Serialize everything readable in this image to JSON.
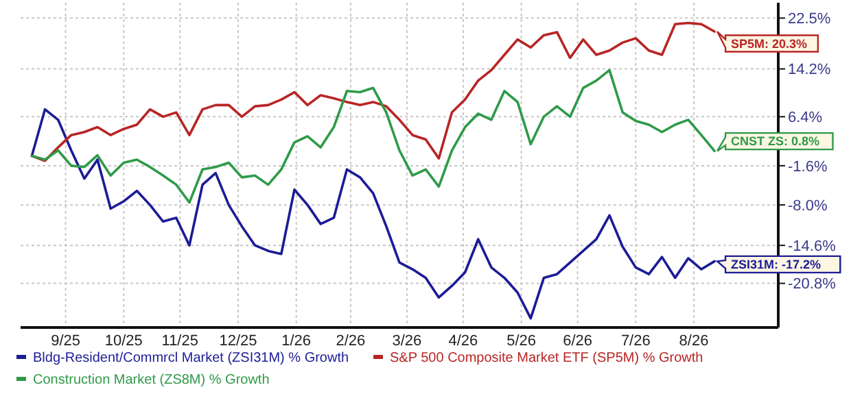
{
  "chart_data": {
    "type": "line",
    "x": [
      "2025-08-28",
      "2025-09-04",
      "2025-09-11",
      "2025-09-18",
      "2025-09-25",
      "2025-10-02",
      "2025-10-09",
      "2025-10-16",
      "2025-10-23",
      "2025-10-30",
      "2025-11-06",
      "2025-11-13",
      "2025-11-20",
      "2025-11-27",
      "2025-12-04",
      "2025-12-11",
      "2025-12-18",
      "2025-12-25",
      "2026-01-01",
      "2026-01-08",
      "2026-01-15",
      "2026-01-22",
      "2026-01-29",
      "2026-02-05",
      "2026-02-12",
      "2026-02-19",
      "2026-02-26",
      "2026-03-05",
      "2026-03-12",
      "2026-03-19",
      "2026-03-26",
      "2026-04-02",
      "2026-04-09",
      "2026-04-16",
      "2026-04-23",
      "2026-04-30",
      "2026-05-07",
      "2026-05-14",
      "2026-05-21",
      "2026-05-28",
      "2026-06-04",
      "2026-06-11",
      "2026-06-18",
      "2026-06-25",
      "2026-07-02",
      "2026-07-09",
      "2026-07-16",
      "2026-07-23",
      "2026-07-30",
      "2026-08-06",
      "2026-08-13",
      "2026-08-20",
      "2026-08-27"
    ],
    "series": [
      {
        "name": "Bldg-Resident/Commrcl Market (ZSI31M) % Growth",
        "color": "#1c1c96",
        "values": [
          0,
          7.6,
          5.9,
          0.9,
          -3.7,
          -0.6,
          -8.6,
          -7.4,
          -5.7,
          -8,
          -10.7,
          -10.1,
          -14.6,
          -4.7,
          -2.8,
          -8,
          -11.5,
          -14.6,
          -15.5,
          -16,
          -5.5,
          -8,
          -11.1,
          -10.1,
          -2.2,
          -3.5,
          -6.1,
          -11.5,
          -17.4,
          -18.5,
          -19.9,
          -23.1,
          -21.2,
          -19,
          -13.6,
          -18.2,
          -19.9,
          -22.3,
          -26.5,
          -19.9,
          -19.3,
          -17.4,
          -15.5,
          -13.6,
          -9.7,
          -14.8,
          -18.2,
          -19.3,
          -16.5,
          -19.9,
          -16.7,
          -18.5,
          -17.2
        ]
      },
      {
        "name": "S&P 500 Composite Market ETF (SP5M) % Growth",
        "color": "#b82525",
        "values": [
          0,
          -0.8,
          1.4,
          3.4,
          3.9,
          4.7,
          3.4,
          4.4,
          5.1,
          7.6,
          6.4,
          7.1,
          3.4,
          7.6,
          8.3,
          8.3,
          6.4,
          8.1,
          8.3,
          9.2,
          10.4,
          8.3,
          9.9,
          9.4,
          8.8,
          8.3,
          8.8,
          8.1,
          5.9,
          3.4,
          2.7,
          -0.4,
          7.1,
          9.2,
          12.3,
          14,
          16.5,
          19,
          17.7,
          19.7,
          20.2,
          16,
          19,
          16.5,
          17.2,
          18.5,
          19.2,
          17.2,
          16.5,
          21.5,
          21.7,
          21.5,
          20.3
        ]
      },
      {
        "name": "Construction Market (ZS8M) % Growth",
        "color": "#2f9a48",
        "values": [
          0,
          -0.6,
          0.9,
          -1.6,
          -1.8,
          0.1,
          -3.2,
          -1.1,
          -0.6,
          -1.8,
          -3.2,
          -4.7,
          -7.6,
          -2.2,
          -1.8,
          -1.1,
          -3.5,
          -3.2,
          -4.7,
          -2.2,
          2.2,
          3.2,
          1.4,
          4.7,
          10.6,
          10.4,
          11.1,
          7.1,
          0.9,
          -3.2,
          -2.2,
          -5,
          0.9,
          4.7,
          6.9,
          5.9,
          10.6,
          8.8,
          1.9,
          6.4,
          8.1,
          6.4,
          11.1,
          12.3,
          14,
          7.1,
          5.7,
          5.1,
          3.9,
          5.1,
          5.9,
          3.4,
          0.8
        ]
      }
    ],
    "xlim": [
      "2025-08-22",
      "2026-09-30"
    ],
    "xticks": [
      {
        "value": "2025-09-15",
        "label": "9/25"
      },
      {
        "value": "2025-10-16",
        "label": "10/25"
      },
      {
        "value": "2025-11-15",
        "label": "11/25"
      },
      {
        "value": "2025-12-16",
        "label": "12/25"
      },
      {
        "value": "2026-01-16",
        "label": "1/26"
      },
      {
        "value": "2026-02-14",
        "label": "2/26"
      },
      {
        "value": "2026-03-16",
        "label": "3/26"
      },
      {
        "value": "2026-04-15",
        "label": "4/26"
      },
      {
        "value": "2026-05-16",
        "label": "5/26"
      },
      {
        "value": "2026-06-15",
        "label": "6/26"
      },
      {
        "value": "2026-07-16",
        "label": "7/26"
      },
      {
        "value": "2026-08-16",
        "label": "8/26"
      }
    ],
    "ylim": [
      -28,
      25
    ],
    "yticks": [
      {
        "value": 22.5,
        "label": "22.5%"
      },
      {
        "value": 14.2,
        "label": "14.2%"
      },
      {
        "value": 6.4,
        "label": "6.4%"
      },
      {
        "value": -1.6,
        "label": "-1.6%"
      },
      {
        "value": -8,
        "label": "-8.0%"
      },
      {
        "value": -14.6,
        "label": "-14.6%"
      },
      {
        "value": -20.8,
        "label": "-20.8%"
      }
    ],
    "annotations": [
      {
        "text": "SP5M: 20.3%",
        "x": "2026-08-27",
        "y": 20.3
      },
      {
        "text": "CNST ZS: 0.8%",
        "x": "2026-08-27",
        "y": 0.8
      },
      {
        "text": "ZSI31M: -17.2%",
        "x": "2026-08-27",
        "y": -17.2
      }
    ],
    "grid": true,
    "legend": "bottom",
    "line_style": "solid"
  }
}
